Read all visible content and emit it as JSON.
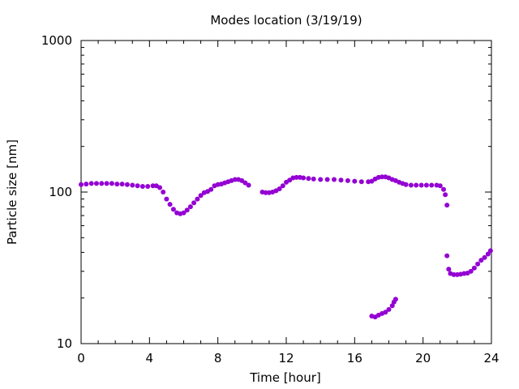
{
  "chart_data": {
    "type": "scatter",
    "title": "Modes location (3/19/19)",
    "xlabel": "Time [hour]",
    "ylabel": "Particle size [nm]",
    "xlim": [
      0,
      24
    ],
    "ylim": [
      10,
      1000
    ],
    "yscale": "log",
    "grid": false,
    "x_ticks": [
      0,
      4,
      8,
      12,
      16,
      20,
      24
    ],
    "x_tick_labels": [
      "0",
      "4",
      "8",
      "12",
      "16",
      "20",
      "24"
    ],
    "y_ticks": [
      10,
      100,
      1000
    ],
    "y_tick_labels": [
      "10",
      "100",
      "1000"
    ],
    "marker_color": "#9400D3",
    "series": [
      {
        "points": [
          [
            0.0,
            112
          ],
          [
            0.3,
            113
          ],
          [
            0.6,
            114
          ],
          [
            0.9,
            114
          ],
          [
            1.2,
            114
          ],
          [
            1.5,
            114
          ],
          [
            1.8,
            114
          ],
          [
            2.1,
            113
          ],
          [
            2.4,
            113
          ],
          [
            2.7,
            112
          ],
          [
            3.0,
            111
          ],
          [
            3.3,
            110
          ],
          [
            3.6,
            109
          ],
          [
            3.9,
            109
          ],
          [
            4.2,
            110
          ],
          [
            4.4,
            110
          ],
          [
            4.6,
            107
          ],
          [
            4.8,
            100
          ],
          [
            5.0,
            90
          ],
          [
            5.2,
            83
          ],
          [
            5.4,
            77
          ],
          [
            5.6,
            73
          ],
          [
            5.8,
            72
          ],
          [
            6.0,
            73
          ],
          [
            6.2,
            76
          ],
          [
            6.4,
            80
          ],
          [
            6.6,
            85
          ],
          [
            6.8,
            90
          ],
          [
            7.0,
            95
          ],
          [
            7.2,
            99
          ],
          [
            7.4,
            101
          ],
          [
            7.6,
            104
          ],
          [
            7.8,
            110
          ],
          [
            8.0,
            112
          ],
          [
            8.2,
            113
          ],
          [
            8.4,
            115
          ],
          [
            8.6,
            117
          ],
          [
            8.8,
            119
          ],
          [
            9.0,
            121
          ],
          [
            9.2,
            121
          ],
          [
            9.4,
            119
          ],
          [
            9.6,
            115
          ],
          [
            9.8,
            111
          ],
          [
            10.6,
            100
          ],
          [
            10.8,
            99
          ],
          [
            11.0,
            99
          ],
          [
            11.2,
            100
          ],
          [
            11.4,
            102
          ],
          [
            11.6,
            105
          ],
          [
            11.8,
            110
          ],
          [
            12.0,
            116
          ],
          [
            12.2,
            120
          ],
          [
            12.4,
            124
          ],
          [
            12.6,
            125
          ],
          [
            12.8,
            125
          ],
          [
            13.0,
            124
          ],
          [
            13.3,
            123
          ],
          [
            13.6,
            122
          ],
          [
            14.0,
            121
          ],
          [
            14.4,
            121
          ],
          [
            14.8,
            121
          ],
          [
            15.2,
            120
          ],
          [
            15.6,
            119
          ],
          [
            16.0,
            118
          ],
          [
            16.4,
            117
          ],
          [
            16.8,
            117
          ],
          [
            17.0,
            118
          ],
          [
            17.2,
            122
          ],
          [
            17.4,
            125
          ],
          [
            17.6,
            126
          ],
          [
            17.8,
            126
          ],
          [
            18.0,
            124
          ],
          [
            18.2,
            121
          ],
          [
            18.4,
            119
          ],
          [
            18.6,
            116
          ],
          [
            18.8,
            114
          ],
          [
            19.0,
            112
          ],
          [
            19.3,
            111
          ],
          [
            19.6,
            111
          ],
          [
            19.9,
            111
          ],
          [
            20.2,
            111
          ],
          [
            20.5,
            111
          ],
          [
            20.8,
            111
          ],
          [
            21.0,
            110
          ],
          [
            21.2,
            104
          ],
          [
            21.3,
            96
          ],
          [
            21.4,
            82
          ]
        ]
      },
      {
        "points": [
          [
            21.4,
            38
          ],
          [
            21.5,
            31
          ],
          [
            21.6,
            29
          ],
          [
            21.8,
            28.5
          ],
          [
            22.0,
            28.5
          ],
          [
            22.2,
            28.7
          ],
          [
            22.4,
            29
          ],
          [
            22.6,
            29.2
          ],
          [
            22.8,
            30
          ],
          [
            23.0,
            31.5
          ],
          [
            23.2,
            33.5
          ],
          [
            23.4,
            35.5
          ],
          [
            23.6,
            37
          ],
          [
            23.8,
            39
          ],
          [
            23.95,
            41
          ]
        ]
      },
      {
        "points": [
          [
            17.0,
            15.2
          ],
          [
            17.2,
            15.0
          ],
          [
            17.4,
            15.4
          ],
          [
            17.6,
            15.8
          ],
          [
            17.8,
            16.1
          ],
          [
            18.0,
            16.8
          ],
          [
            18.2,
            17.8
          ],
          [
            18.3,
            18.8
          ],
          [
            18.4,
            19.6
          ]
        ]
      }
    ]
  }
}
